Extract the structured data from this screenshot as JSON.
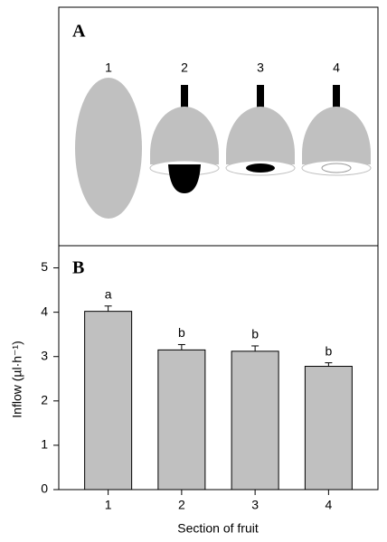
{
  "diagram": {
    "panel_label": "A",
    "labels": [
      "1",
      "2",
      "3",
      "4"
    ]
  },
  "chart_data": {
    "type": "bar",
    "panel_label": "B",
    "categories": [
      "1",
      "2",
      "3",
      "4"
    ],
    "values": [
      4.02,
      3.15,
      3.12,
      2.78
    ],
    "errors": [
      0.12,
      0.12,
      0.12,
      0.08
    ],
    "letters": [
      "a",
      "b",
      "b",
      "b"
    ],
    "color": "#c0c0c0",
    "ylim": [
      0,
      5.5
    ],
    "yticks": [
      0,
      1,
      2,
      3,
      4,
      5
    ],
    "ylabel": "Inflow (µl·h⁻¹)",
    "xlabel": "Section of fruit"
  }
}
